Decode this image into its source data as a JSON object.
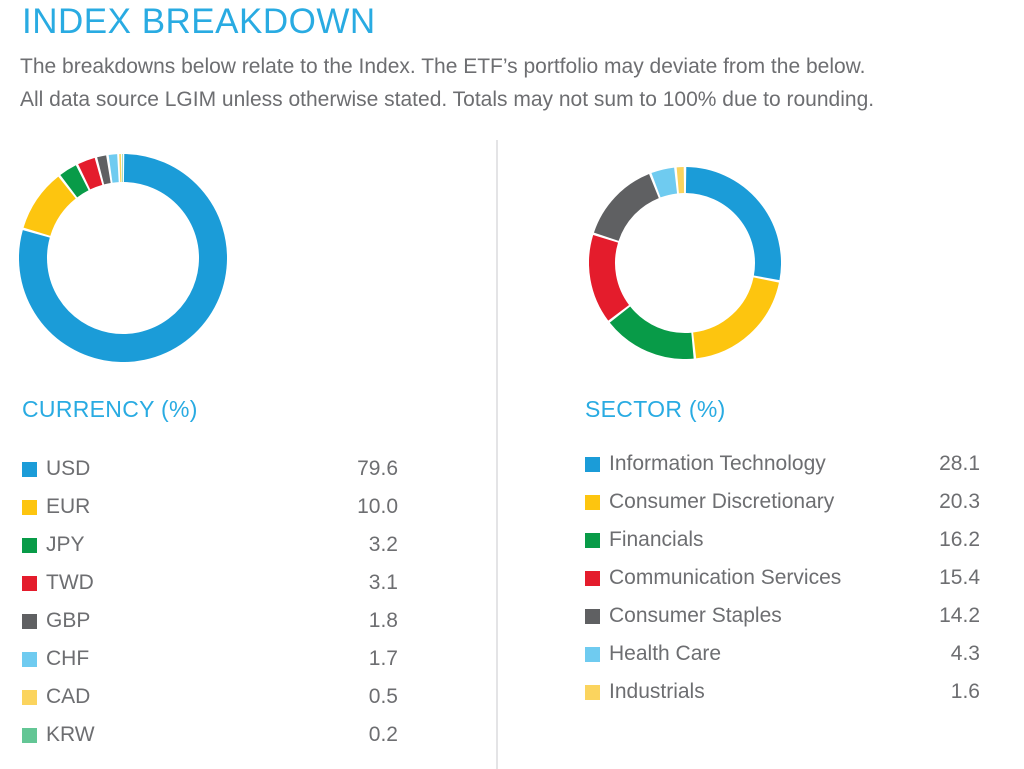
{
  "page": {
    "title": "INDEX BREAKDOWN",
    "subtitle_line1": "The breakdowns below relate to the Index. The ETF’s portfolio may deviate from the below.",
    "subtitle_line2": "All data source LGIM unless otherwise stated. Totals may not sum to 100% due to rounding."
  },
  "colors": {
    "accent": "#29ABE2",
    "body_text": "#6D6E71",
    "divider": "#E4E4E6"
  },
  "chart_data": [
    {
      "type": "pie",
      "variant": "donut",
      "title": "CURRENCY (%)",
      "legend_position": "bottom",
      "start_angle_deg": 0,
      "direction": "clockwise",
      "categories": [
        "USD",
        "EUR",
        "JPY",
        "TWD",
        "GBP",
        "CHF",
        "CAD",
        "KRW"
      ],
      "values": [
        79.6,
        10.0,
        3.2,
        3.1,
        1.8,
        1.7,
        0.5,
        0.2
      ],
      "value_labels": [
        "79.6",
        "10.0",
        "3.2",
        "3.1",
        "1.8",
        "1.7",
        "0.5",
        "0.2"
      ],
      "colors": [
        "#1B9CD8",
        "#FDC50F",
        "#089B48",
        "#E41C2C",
        "#5F6062",
        "#6FCBF0",
        "#FBD45E",
        "#63C695"
      ]
    },
    {
      "type": "pie",
      "variant": "donut",
      "title": "SECTOR (%)",
      "legend_position": "bottom",
      "start_angle_deg": 0,
      "direction": "clockwise",
      "categories": [
        "Information Technology",
        "Consumer Discretionary",
        "Financials",
        "Communication Services",
        "Consumer Staples",
        "Health Care",
        "Industrials"
      ],
      "values": [
        28.1,
        20.3,
        16.2,
        15.4,
        14.2,
        4.3,
        1.6
      ],
      "value_labels": [
        "28.1",
        "20.3",
        "16.2",
        "15.4",
        "14.2",
        "4.3",
        "1.6"
      ],
      "colors": [
        "#1B9CD8",
        "#FDC50F",
        "#089B48",
        "#E41C2C",
        "#5F6062",
        "#6FCBF0",
        "#FBD45E"
      ]
    }
  ]
}
